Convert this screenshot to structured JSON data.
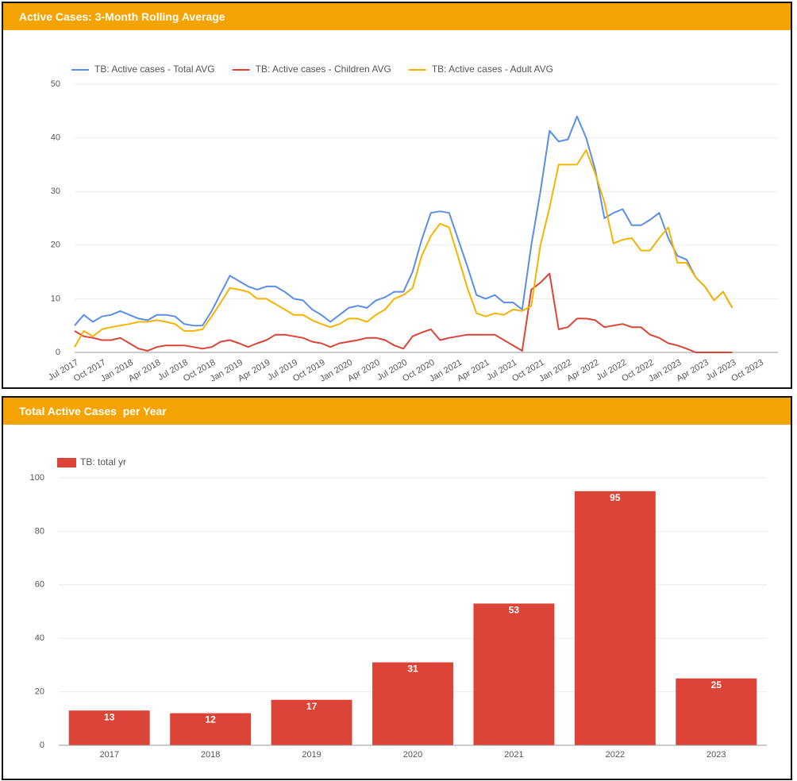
{
  "chart_data": [
    {
      "type": "line",
      "title": "Active Cases: 3-Month Rolling Average",
      "x": [
        "2017-07",
        "2017-08",
        "2017-09",
        "2017-10",
        "2017-11",
        "2017-12",
        "2018-01",
        "2018-02",
        "2018-03",
        "2018-04",
        "2018-05",
        "2018-06",
        "2018-07",
        "2018-08",
        "2018-09",
        "2018-10",
        "2018-11",
        "2018-12",
        "2019-01",
        "2019-02",
        "2019-03",
        "2019-04",
        "2019-05",
        "2019-06",
        "2019-07",
        "2019-08",
        "2019-09",
        "2019-10",
        "2019-11",
        "2019-12",
        "2020-01",
        "2020-02",
        "2020-03",
        "2020-04",
        "2020-05",
        "2020-06",
        "2020-07",
        "2020-08",
        "2020-09",
        "2020-10",
        "2020-11",
        "2020-12",
        "2021-01",
        "2021-02",
        "2021-03",
        "2021-04",
        "2021-05",
        "2021-06",
        "2021-07",
        "2021-08",
        "2021-09",
        "2021-10",
        "2021-11",
        "2021-12",
        "2022-01",
        "2022-02",
        "2022-03",
        "2022-04",
        "2022-05",
        "2022-06",
        "2022-07",
        "2022-08",
        "2022-09",
        "2022-10",
        "2022-11",
        "2022-12",
        "2023-01",
        "2023-02",
        "2023-03",
        "2023-04",
        "2023-05",
        "2023-06",
        "2023-07"
      ],
      "series": [
        {
          "name": "TB: Active cases - Total AVG",
          "color": "#5b8ee6",
          "values": [
            5,
            7,
            5.7,
            6.7,
            7,
            7.7,
            7,
            6.3,
            6,
            7,
            7,
            6.7,
            5.3,
            5,
            5,
            7.7,
            11,
            14.3,
            13.3,
            12.3,
            11.7,
            12.3,
            12.3,
            11.3,
            10,
            9.7,
            8,
            7,
            5.7,
            7,
            8.3,
            8.7,
            8.3,
            9.7,
            10.3,
            11.3,
            11.3,
            15,
            21,
            26,
            26.3,
            26,
            21,
            16,
            10.7,
            10,
            10.7,
            9.3,
            9.3,
            8,
            20,
            30,
            41.3,
            39.3,
            39.7,
            44,
            40,
            34,
            25,
            26,
            26.7,
            23.7,
            23.7,
            24.7,
            26,
            21.3,
            18,
            17.3,
            14,
            12.3,
            9.7,
            11.3,
            8.3
          ]
        },
        {
          "name": "TB: Active cases - Children AVG",
          "color": "#db4437",
          "values": [
            4,
            3,
            2.7,
            2.3,
            2.3,
            2.7,
            1.7,
            0.7,
            0.3,
            1,
            1.3,
            1.3,
            1.3,
            1,
            0.7,
            1,
            2,
            2.3,
            1.7,
            1,
            1.7,
            2.3,
            3.3,
            3.3,
            3,
            2.7,
            2,
            1.7,
            1,
            1.7,
            2,
            2.3,
            2.7,
            2.7,
            2.3,
            1.3,
            0.7,
            3,
            3.7,
            4.3,
            2.3,
            2.7,
            3,
            3.3,
            3.3,
            3.3,
            3.3,
            2.3,
            1.3,
            0.3,
            11.7,
            13,
            14.7,
            4.3,
            4.7,
            6.3,
            6.3,
            6,
            4.7,
            5,
            5.3,
            4.7,
            4.7,
            3.3,
            2.7,
            1.7,
            1.3,
            0.7,
            0,
            0,
            0,
            0,
            0
          ]
        },
        {
          "name": "TB: Active cases - Adult AVG",
          "color": "#f4b400",
          "values": [
            1,
            4,
            3,
            4.3,
            4.7,
            5,
            5.3,
            5.7,
            5.7,
            6,
            5.7,
            5.3,
            4,
            4,
            4.3,
            6.7,
            9.3,
            12,
            11.7,
            11.3,
            10,
            10,
            9,
            8,
            7,
            7,
            6,
            5.3,
            4.7,
            5.3,
            6.3,
            6.3,
            5.7,
            7,
            8,
            10,
            10.7,
            12,
            18,
            21.7,
            24,
            23.3,
            17.7,
            12,
            7.3,
            6.7,
            7.3,
            7,
            8,
            7.7,
            8.7,
            20,
            27,
            35,
            35,
            35,
            37.7,
            33.3,
            28,
            20.3,
            21,
            21.3,
            19,
            19,
            21.3,
            23.3,
            16.7,
            16.7,
            14,
            12.3,
            9.7,
            11.3,
            8.3
          ]
        }
      ],
      "xlim": [
        "2017-07",
        "2023-12"
      ],
      "xticks": [
        {
          "value": "2017-07",
          "label": "Jul 2017"
        },
        {
          "value": "2017-10",
          "label": "Oct 2017"
        },
        {
          "value": "2018-01",
          "label": "Jan 2018"
        },
        {
          "value": "2018-04",
          "label": "Apr 2018"
        },
        {
          "value": "2018-07",
          "label": "Jul 2018"
        },
        {
          "value": "2018-10",
          "label": "Oct 2018"
        },
        {
          "value": "2019-01",
          "label": "Jan 2019"
        },
        {
          "value": "2019-04",
          "label": "Apr 2019"
        },
        {
          "value": "2019-07",
          "label": "Jul 2019"
        },
        {
          "value": "2019-10",
          "label": "Oct 2019"
        },
        {
          "value": "2020-01",
          "label": "Jan 2020"
        },
        {
          "value": "2020-04",
          "label": "Apr 2020"
        },
        {
          "value": "2020-07",
          "label": "Jul 2020"
        },
        {
          "value": "2020-10",
          "label": "Oct 2020"
        },
        {
          "value": "2021-01",
          "label": "Jan 2021"
        },
        {
          "value": "2021-04",
          "label": "Apr 2021"
        },
        {
          "value": "2021-07",
          "label": "Jul 2021"
        },
        {
          "value": "2021-10",
          "label": "Oct 2021"
        },
        {
          "value": "2022-01",
          "label": "Jan 2022"
        },
        {
          "value": "2022-04",
          "label": "Apr 2022"
        },
        {
          "value": "2022-07",
          "label": "Jul 2022"
        },
        {
          "value": "2022-10",
          "label": "Oct 2022"
        },
        {
          "value": "2023-01",
          "label": "Jan 2023"
        },
        {
          "value": "2023-04",
          "label": "Apr 2023"
        },
        {
          "value": "2023-07",
          "label": "Jul 2023"
        },
        {
          "value": "2023-10",
          "label": "Oct 2023"
        }
      ],
      "ylim": [
        0,
        50
      ],
      "yticks": [
        0,
        10,
        20,
        30,
        40,
        50
      ],
      "grid": true,
      "legend": "top"
    },
    {
      "type": "bar",
      "title": "Total Active Cases  per Year",
      "categories": [
        "2017",
        "2018",
        "2019",
        "2020",
        "2021",
        "2022",
        "2023"
      ],
      "series": [
        {
          "name": "TB: total yr",
          "color": "#db4437",
          "values": [
            13,
            12,
            17,
            31,
            53,
            95,
            25
          ]
        }
      ],
      "ylim": [
        0,
        100
      ],
      "yticks": [
        0,
        20,
        40,
        60,
        80,
        100
      ],
      "grid": true,
      "legend": "top",
      "data_labels": true
    }
  ]
}
